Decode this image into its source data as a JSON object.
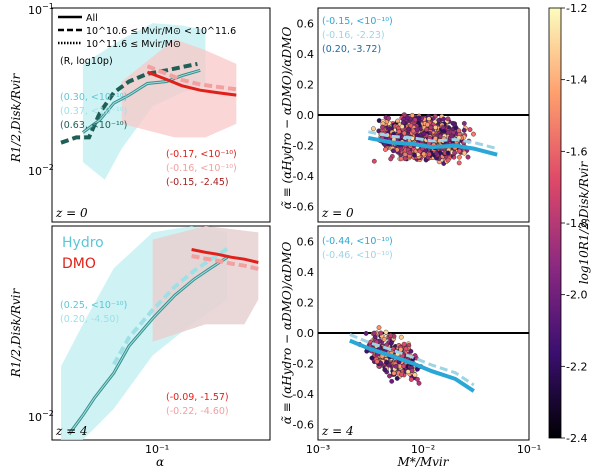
{
  "chart_data": [
    {
      "id": "tl",
      "type": "line",
      "xlim": [
        0.04,
        0.7
      ],
      "ylim": [
        0.003,
        0.1
      ],
      "xlog": true,
      "ylog": true,
      "ylabel": "R1/2,Disk/Rvir",
      "ytick_labels": {
        "top": "10",
        "top_exp": "−1",
        "mid": "10",
        "mid_exp": "−2"
      },
      "zlabel": "z = 0",
      "legend": {
        "all": "All",
        "mid": "10^10.6 ≤ Mvir/M⊙ < 10^11.6",
        "high": "10^11.6 ≤ Mvir/M⊙",
        "header": "(R, log10p)"
      },
      "annotations": [
        {
          "text": "(0.30, <10⁻¹⁰)",
          "color": "#5bc7d6"
        },
        {
          "text": "(0.37, <10⁻¹⁰)",
          "color": "#9fe0e6"
        },
        {
          "text": "(0.63, <10⁻¹⁰)",
          "color": "#1f5f55"
        },
        {
          "text": "(-0.17, <10⁻¹⁰)",
          "color": "#e0201a"
        },
        {
          "text": "(-0.16, <10⁻¹⁰)",
          "color": "#f2a0a0"
        },
        {
          "text": "(-0.15, -2.45)",
          "color": "#a52020"
        }
      ],
      "series": [
        {
          "group": "hydro-all",
          "x": [
            0.06,
            0.075,
            0.09,
            0.11,
            0.14,
            0.18,
            0.22,
            0.28
          ],
          "y": [
            0.013,
            0.016,
            0.021,
            0.024,
            0.029,
            0.03,
            0.033,
            0.036
          ]
        },
        {
          "group": "hydro-high",
          "x": [
            0.045,
            0.055,
            0.065,
            0.075,
            0.09,
            0.11,
            0.14,
            0.18,
            0.22,
            0.27
          ],
          "y": [
            0.011,
            0.012,
            0.012,
            0.018,
            0.025,
            0.03,
            0.034,
            0.036,
            0.038,
            0.04
          ]
        },
        {
          "group": "dmo-all",
          "x": [
            0.14,
            0.18,
            0.22,
            0.28,
            0.35,
            0.45
          ],
          "y": [
            0.035,
            0.031,
            0.028,
            0.026,
            0.025,
            0.024
          ]
        }
      ]
    },
    {
      "id": "tr",
      "type": "scatter",
      "xlim": [
        0.001,
        0.1
      ],
      "ylim": [
        -0.7,
        0.7
      ],
      "xlog": true,
      "ylabel": "α̃ ≡ (αHydro − αDMO)/αDMO",
      "zlabel": "z = 0",
      "annotations": [
        {
          "text": "(-0.15, <10⁻¹⁰)",
          "color": "#2aa7d6"
        },
        {
          "text": "(-0.16, -2.23)",
          "color": "#9fd3e6"
        },
        {
          "text": "(0.20, -3.72)",
          "color": "#1f6a9a"
        }
      ],
      "trend": {
        "x": [
          0.003,
          0.005,
          0.008,
          0.012,
          0.02,
          0.03,
          0.05
        ],
        "y": [
          -0.15,
          -0.18,
          -0.19,
          -0.21,
          -0.2,
          -0.22,
          -0.26
        ]
      }
    },
    {
      "id": "bl",
      "type": "line",
      "xlim": [
        0.04,
        0.7
      ],
      "ylim": [
        0.003,
        0.1
      ],
      "xlog": true,
      "ylog": true,
      "xlabel": "α",
      "xtick_label": "10⁻¹",
      "ylabel": "R1/2,Disk/Rvir",
      "zlabel": "z = 4",
      "legend": {
        "hydro": "Hydro",
        "dmo": "DMO"
      },
      "annotations": [
        {
          "text": "(0.25, <10⁻¹⁰)",
          "color": "#5bc7d6"
        },
        {
          "text": "(0.20, -4.50)",
          "color": "#9fe0e6"
        },
        {
          "text": "(-0.09, -1.57)",
          "color": "#e0201a"
        },
        {
          "text": "(-0.22, -4.60)",
          "color": "#f2a0a0"
        }
      ],
      "series": [
        {
          "group": "hydro-all",
          "x": [
            0.05,
            0.06,
            0.07,
            0.09,
            0.11,
            0.15,
            0.2,
            0.26,
            0.32,
            0.4
          ],
          "y": [
            0.0033,
            0.0045,
            0.006,
            0.009,
            0.014,
            0.022,
            0.032,
            0.042,
            0.05,
            0.06
          ]
        },
        {
          "group": "dmo-all",
          "x": [
            0.25,
            0.3,
            0.35,
            0.42,
            0.5,
            0.6
          ],
          "y": [
            0.068,
            0.065,
            0.063,
            0.06,
            0.058,
            0.055
          ]
        }
      ]
    },
    {
      "id": "br",
      "type": "scatter",
      "xlim": [
        0.001,
        0.1
      ],
      "ylim": [
        -0.7,
        0.7
      ],
      "xlog": true,
      "xlabel": "M*/Mvir",
      "xtick_labels": [
        "10⁻³",
        "10⁻²",
        "10⁻¹"
      ],
      "ylabel": "α̃ ≡ (αHydro − αDMO)/αDMO",
      "zlabel": "z = 4",
      "annotations": [
        {
          "text": "(-0.44, <10⁻¹⁰)",
          "color": "#2aa7d6"
        },
        {
          "text": "(-0.46, <10⁻¹⁰)",
          "color": "#9fd3e6"
        }
      ],
      "trend": {
        "x": [
          0.002,
          0.003,
          0.005,
          0.008,
          0.012,
          0.02,
          0.03
        ],
        "y": [
          -0.05,
          -0.1,
          -0.15,
          -0.2,
          -0.25,
          -0.3,
          -0.38
        ]
      }
    }
  ],
  "yticks_right": [
    "0.6",
    "0.4",
    "0.2",
    "0.0",
    "-0.2",
    "-0.4",
    "-0.6"
  ],
  "colorbar": {
    "label": "log10R1/2,Disk/Rvir",
    "range": [
      -2.4,
      -1.2
    ],
    "ticks": [
      "-1.2",
      "-1.4",
      "-1.6",
      "-1.8",
      "-2.0",
      "-2.2",
      "-2.4"
    ],
    "colors": [
      "#000000",
      "#3b0f6f",
      "#8c2981",
      "#de4968",
      "#fe9f6d",
      "#fcfdbf"
    ]
  }
}
